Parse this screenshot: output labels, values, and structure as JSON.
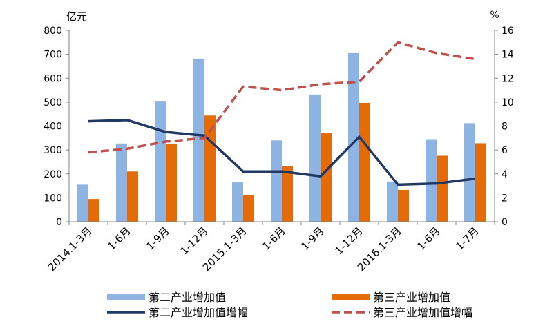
{
  "chart_data": {
    "type": "bar",
    "categories": [
      "2014.1-3月",
      "1-6月",
      "1-9月",
      "1-12月",
      "2015.1-3月",
      "1-6月",
      "1-9月",
      "1-12月",
      "2016.1-3月",
      "1-6月",
      "1-7月"
    ],
    "y_left": {
      "unit_label": "亿元",
      "ticks": [
        0,
        100,
        200,
        300,
        400,
        500,
        600,
        700,
        800
      ],
      "ylim": [
        0,
        800
      ]
    },
    "y_right": {
      "unit_label": "%",
      "ticks": [
        0,
        2,
        4,
        6,
        8,
        10,
        12,
        14,
        16
      ],
      "ylim": [
        0,
        16
      ]
    },
    "grid": false,
    "legend_position": "bottom",
    "series": [
      {
        "name": "第二产业增加值",
        "kind": "bar",
        "axis": "left",
        "color": "#8EB4E3",
        "values": [
          155,
          327,
          505,
          682,
          165,
          340,
          532,
          705,
          168,
          345,
          412
        ]
      },
      {
        "name": "第三产业增加值",
        "kind": "bar",
        "axis": "left",
        "color": "#E36C09",
        "values": [
          95,
          210,
          326,
          444,
          110,
          232,
          372,
          497,
          133,
          276,
          328
        ]
      },
      {
        "name": "第二产业增加值增幅",
        "kind": "line",
        "style": "solid",
        "axis": "right",
        "color": "#1F3864",
        "values": [
          8.4,
          8.5,
          7.5,
          7.2,
          4.2,
          4.2,
          3.8,
          7.1,
          3.1,
          3.2,
          3.6
        ]
      },
      {
        "name": "第三产业增加值增幅",
        "kind": "line",
        "style": "dashed",
        "axis": "right",
        "color": "#C0504D",
        "values": [
          5.8,
          6.1,
          6.7,
          7.0,
          11.3,
          11.0,
          11.5,
          11.7,
          15.0,
          14.1,
          13.6
        ]
      }
    ]
  }
}
